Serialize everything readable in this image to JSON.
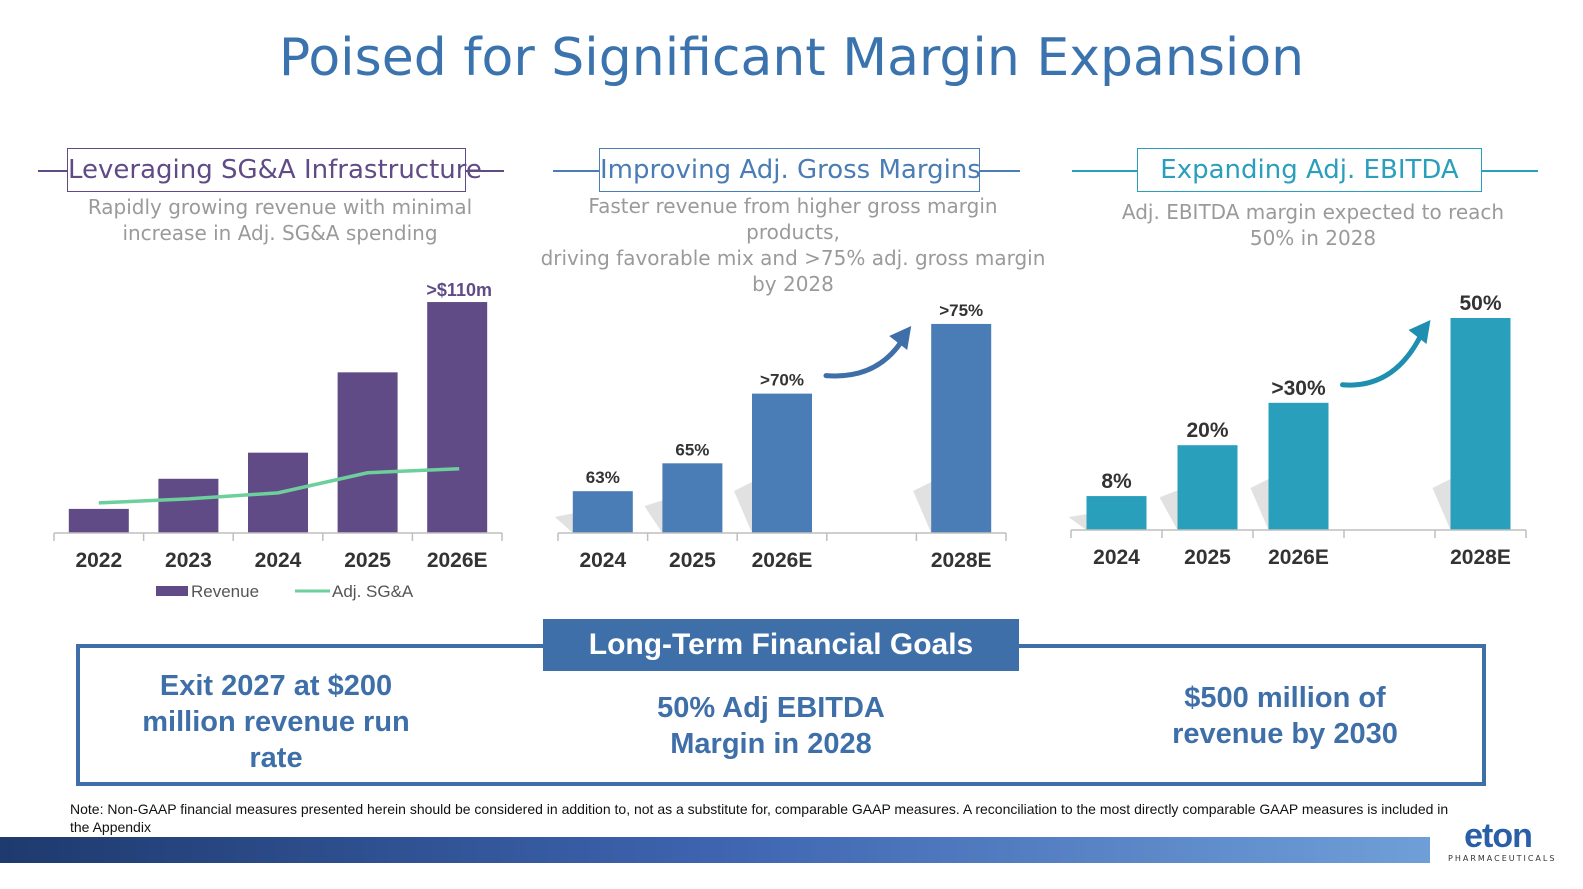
{
  "title": "Poised for Significant Margin Expansion",
  "panels": [
    {
      "heading": "Leveraging SG&A Infrastructure",
      "subtitle_lines": [
        "Rapidly growing revenue with minimal",
        "increase in Adj. SG&A spending"
      ],
      "color": "#614b86"
    },
    {
      "heading": "Improving Adj. Gross Margins",
      "subtitle_lines": [
        "Faster revenue from higher gross margin products,",
        "driving favorable mix and >75% adj. gross margin",
        "by 2028"
      ],
      "color": "#4a7db5"
    },
    {
      "heading": "Expanding Adj. EBITDA",
      "subtitle_lines": [
        "Adj. EBITDA margin expected to reach",
        "50% in 2028"
      ],
      "color": "#2a9fbb"
    }
  ],
  "chart_data": [
    {
      "type": "bar",
      "categories": [
        "2022",
        "2023",
        "2024",
        "2025",
        "2026E"
      ],
      "series": [
        {
          "name": "Revenue",
          "type": "bar",
          "values": [
            12,
            27,
            40,
            80,
            115
          ],
          "color": "#614b86"
        },
        {
          "name": "Adj. SG&A",
          "type": "line",
          "values": [
            15,
            17,
            20,
            30,
            32
          ],
          "color": "#6ccf9c"
        }
      ],
      "data_labels": [
        "",
        "",
        "",
        "",
        ">$110m"
      ],
      "ylim": [
        0,
        120
      ],
      "legend": "bottom"
    },
    {
      "type": "bar",
      "categories": [
        "2024",
        "2025",
        "2026E",
        "",
        "2028E"
      ],
      "values": [
        63,
        65,
        70,
        null,
        75
      ],
      "data_labels": [
        "63%",
        "65%",
        ">70%",
        "",
        ">75%"
      ],
      "color": "#4a7db5",
      "ylim": [
        60,
        76
      ]
    },
    {
      "type": "bar",
      "categories": [
        "2024",
        "2025",
        "2026E",
        "",
        "2028E"
      ],
      "values": [
        8,
        20,
        30,
        null,
        50
      ],
      "data_labels": [
        "8%",
        "20%",
        ">30%",
        "",
        "50%"
      ],
      "color": "#2a9fbb",
      "ylim": [
        0,
        50
      ]
    }
  ],
  "goals": {
    "title": "Long-Term Financial Goals",
    "items": [
      "Exit 2027 at $200 million revenue run rate",
      "50% Adj EBITDA Margin in 2028",
      "$500 million of revenue by 2030"
    ]
  },
  "note": "Note: Non-GAAP financial measures presented herein should be considered in addition to, not as a substitute for, comparable GAAP measures. A reconciliation to the most directly comparable GAAP measures is included in the Appendix",
  "logo": {
    "word": "eton",
    "sub": "PHARMACEUTICALS"
  }
}
